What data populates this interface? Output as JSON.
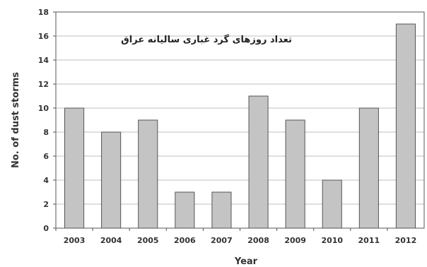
{
  "chart_data": {
    "type": "bar",
    "title": "تعداد روزهای گرد غباری سالیانه عراق",
    "xlabel": "Year",
    "ylabel": "No. of dust storms",
    "categories": [
      "2003",
      "2004",
      "2005",
      "2006",
      "2007",
      "2008",
      "2009",
      "2010",
      "2011",
      "2012"
    ],
    "values": [
      10,
      8,
      9,
      3,
      3,
      11,
      9,
      4,
      10,
      17
    ],
    "ylim": [
      0,
      18
    ],
    "yticks": [
      0,
      2,
      4,
      6,
      8,
      10,
      12,
      14,
      16,
      18
    ],
    "grid": "horizontal",
    "legend": "none",
    "colors": {
      "bar_fill": "#c4c4c4",
      "bar_stroke": "#555555",
      "grid": "#bfbfbf",
      "axis": "#555555"
    }
  }
}
